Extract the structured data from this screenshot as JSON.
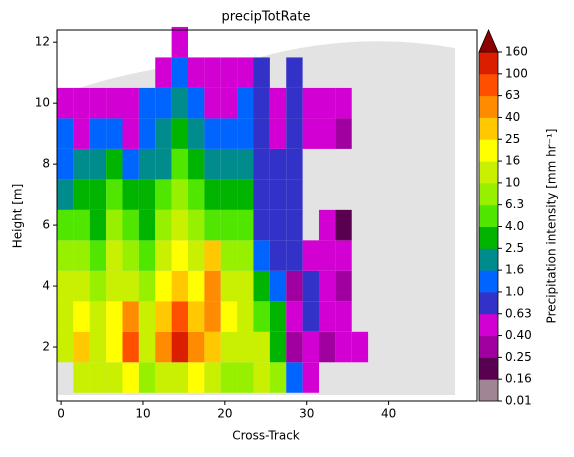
{
  "chart_data": {
    "type": "heatmap",
    "title": "precipTotRate",
    "x_label": "Cross-Track",
    "y_label": "Height [m]",
    "colorbar_label": "Precipitation intensity [mm hr⁻¹]",
    "xlim": [
      -0.5,
      50.8
    ],
    "xticks": [
      0,
      10,
      20,
      30,
      40
    ],
    "ylim": [
      0.23,
      12.4
    ],
    "yticks": [
      2,
      4,
      6,
      8,
      10,
      12
    ],
    "x": [
      0.5,
      2.5,
      4.5,
      6.5,
      8.5,
      10.5,
      12.5,
      14.5,
      16.5,
      18.5,
      20.5,
      22.5,
      24.5,
      26.5,
      28.5,
      30.5,
      32.5,
      34.5,
      36.5
    ],
    "y": [
      1,
      2,
      3,
      4,
      5,
      6,
      7,
      8,
      9,
      10,
      11,
      12
    ],
    "z": [
      [
        null,
        13,
        13,
        13,
        20,
        8,
        13,
        13,
        20,
        13,
        8,
        8,
        13,
        8,
        1.2,
        0.5,
        null,
        null,
        null
      ],
      [
        13,
        30,
        13,
        20,
        80,
        13,
        50,
        120,
        50,
        30,
        13,
        13,
        13,
        3,
        0.3,
        0.5,
        0.3,
        0.5,
        0.5
      ],
      [
        13,
        20,
        13,
        20,
        50,
        13,
        30,
        80,
        30,
        50,
        20,
        13,
        5,
        3,
        0.5,
        0.8,
        0.5,
        0.5,
        null
      ],
      [
        13,
        13,
        8,
        13,
        13,
        8,
        20,
        30,
        20,
        50,
        13,
        13,
        3,
        1.2,
        0.3,
        0.8,
        0.5,
        0.3,
        null
      ],
      [
        8,
        8,
        5,
        13,
        8,
        5,
        13,
        20,
        13,
        30,
        8,
        8,
        1.2,
        0.8,
        0.8,
        0.5,
        0.5,
        0.5,
        null
      ],
      [
        5,
        5,
        3,
        8,
        5,
        3,
        8,
        13,
        8,
        5,
        5,
        5,
        0.8,
        0.8,
        0.8,
        null,
        0.5,
        0.2,
        null
      ],
      [
        2,
        3,
        3,
        5,
        3,
        3,
        5,
        8,
        5,
        3,
        3,
        3,
        0.8,
        0.8,
        0.8,
        null,
        null,
        null,
        null
      ],
      [
        1.2,
        2,
        2,
        3,
        1.2,
        2,
        2,
        5,
        3,
        2,
        2,
        2,
        0.8,
        0.8,
        0.8,
        null,
        null,
        null,
        null
      ],
      [
        1.2,
        0.5,
        1.2,
        1.2,
        0.5,
        1.2,
        2,
        3,
        2,
        1.2,
        1.2,
        1.2,
        0.8,
        0.5,
        0.8,
        0.5,
        0.5,
        0.3,
        null
      ],
      [
        0.5,
        0.5,
        0.5,
        0.5,
        0.5,
        1.2,
        1.2,
        2,
        1.2,
        0.5,
        0.5,
        1.2,
        0.8,
        0.5,
        0.8,
        0.5,
        0.5,
        0.5,
        null
      ],
      [
        null,
        null,
        null,
        null,
        null,
        null,
        0.5,
        1.2,
        0.5,
        0.5,
        0.5,
        0.5,
        0.8,
        null,
        0.8,
        null,
        null,
        null,
        null
      ],
      [
        null,
        null,
        null,
        null,
        null,
        null,
        null,
        0.5,
        null,
        null,
        null,
        null,
        null,
        null,
        null,
        null,
        null,
        null,
        null
      ]
    ],
    "colorbar_ticks": [
      0.01,
      0.16,
      0.25,
      {
        "value": 0.4,
        "label": "0.40"
      },
      0.63,
      {
        "value": 1,
        "label": "1.0"
      },
      1.6,
      2.5,
      {
        "value": 4,
        "label": "4.0"
      },
      6.3,
      10,
      16,
      25,
      40,
      63,
      100,
      160
    ],
    "colors": [
      "#a08595",
      "#5a0050",
      "#a000a0",
      "#d200d2",
      "#3232c8",
      "#0064ff",
      "#008c8c",
      "#00b400",
      "#50e600",
      "#96f000",
      "#c8f000",
      "#ffff00",
      "#ffc800",
      "#ff8c00",
      "#ff5000",
      "#dc1e00"
    ],
    "over_color": "#8b0000"
  }
}
